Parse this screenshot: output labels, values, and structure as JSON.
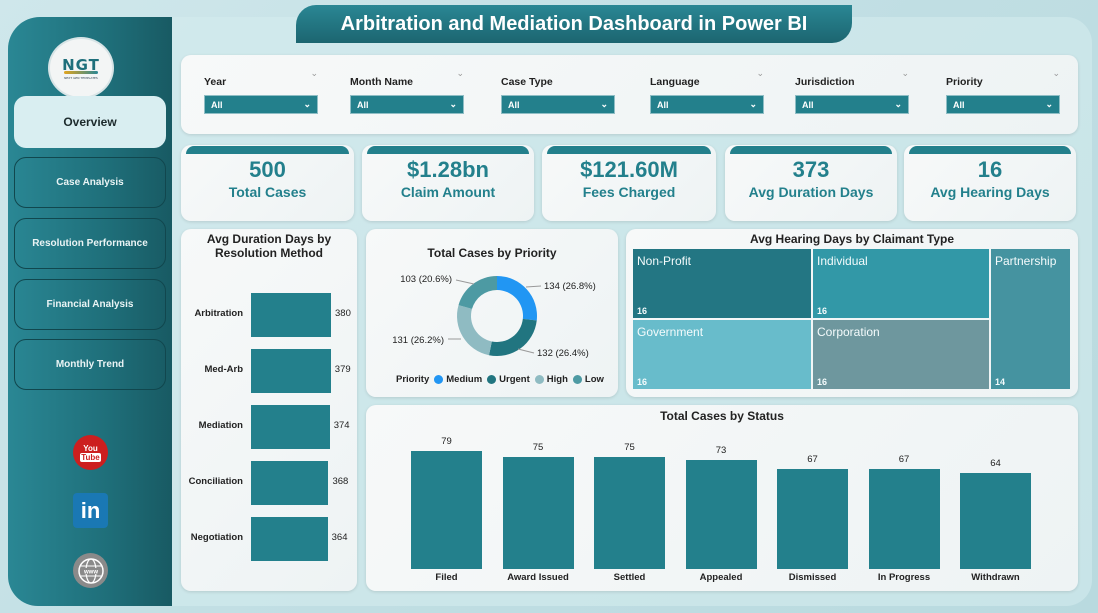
{
  "app": {
    "title": "Arbitration and Mediation Dashboard in Power BI",
    "logo": {
      "mark": "NGT",
      "tagline": "NEXT GEN TEMPLATES"
    }
  },
  "sidebar": {
    "items": [
      {
        "label": "Overview",
        "active": true
      },
      {
        "label": "Case Analysis",
        "active": false
      },
      {
        "label": "Resolution Performance",
        "active": false
      },
      {
        "label": "Financial Analysis",
        "active": false
      },
      {
        "label": "Monthly Trend",
        "active": false
      }
    ],
    "social": [
      {
        "icon": "youtube-icon",
        "top": "You",
        "bottom": "Tube"
      },
      {
        "icon": "linkedin-icon",
        "text": "in"
      },
      {
        "icon": "website-icon",
        "text": "www"
      }
    ]
  },
  "filters": [
    {
      "label": "Year",
      "value": "All"
    },
    {
      "label": "Month Name",
      "value": "All"
    },
    {
      "label": "Case Type",
      "value": "All"
    },
    {
      "label": "Language",
      "value": "All"
    },
    {
      "label": "Jurisdiction",
      "value": "All"
    },
    {
      "label": "Priority",
      "value": "All"
    }
  ],
  "kpis": [
    {
      "value": "500",
      "label": "Total Cases"
    },
    {
      "value": "$1.28bn",
      "label": "Claim Amount"
    },
    {
      "value": "$121.60M",
      "label": "Fees Charged"
    },
    {
      "value": "373",
      "label": "Avg Duration Days"
    },
    {
      "value": "16",
      "label": "Avg Hearing Days"
    }
  ],
  "colors": {
    "accent": "#23808c",
    "medium": "#2196f3",
    "urgent": "#217580",
    "high": "#8fbbc2",
    "low": "#4d9aa3"
  },
  "chart_data": [
    {
      "type": "bar",
      "orientation": "horizontal",
      "title_line1": "Avg Duration Days by",
      "title_line2": "Resolution Method",
      "categories": [
        "Arbitration",
        "Med-Arb",
        "Mediation",
        "Conciliation",
        "Negotiation"
      ],
      "values": [
        380,
        379,
        374,
        368,
        364
      ],
      "value_labels": [
        "380",
        "379",
        "374",
        "368",
        "364"
      ],
      "xlim": [
        0,
        380
      ]
    },
    {
      "type": "pie",
      "donut": true,
      "title": "Total Cases by Priority",
      "legend_title": "Priority",
      "legend_position": "bottom",
      "slices": [
        {
          "name": "Medium",
          "value": 134,
          "label": "134 (26.8%)"
        },
        {
          "name": "Urgent",
          "value": 132,
          "label": "132 (26.4%)"
        },
        {
          "name": "High",
          "value": 131,
          "label": "131 (26.2%)"
        },
        {
          "name": "Low",
          "value": 103,
          "label": "103 (20.6%)"
        }
      ]
    },
    {
      "type": "treemap",
      "title": "Avg Hearing Days by Claimant Type",
      "cells": [
        {
          "name": "Non-Profit",
          "value": 16,
          "label": "16",
          "color": "#237683"
        },
        {
          "name": "Individual",
          "value": 16,
          "label": "16",
          "color": "#3298a7"
        },
        {
          "name": "Partnership",
          "value": 14,
          "label": "14",
          "color": "#4593a0"
        },
        {
          "name": "Government",
          "value": 16,
          "label": "16",
          "color": "#68bccb"
        },
        {
          "name": "Corporation",
          "value": 16,
          "label": "16",
          "color": "#6e979e"
        }
      ]
    },
    {
      "type": "bar",
      "orientation": "vertical",
      "title": "Total Cases by Status",
      "categories": [
        "Filed",
        "Award Issued",
        "Settled",
        "Appealed",
        "Dismissed",
        "In Progress",
        "Withdrawn"
      ],
      "values": [
        79,
        75,
        75,
        73,
        67,
        67,
        64
      ],
      "value_labels": [
        "79",
        "75",
        "75",
        "73",
        "67",
        "67",
        "64"
      ],
      "ylim": [
        0,
        79
      ]
    }
  ]
}
